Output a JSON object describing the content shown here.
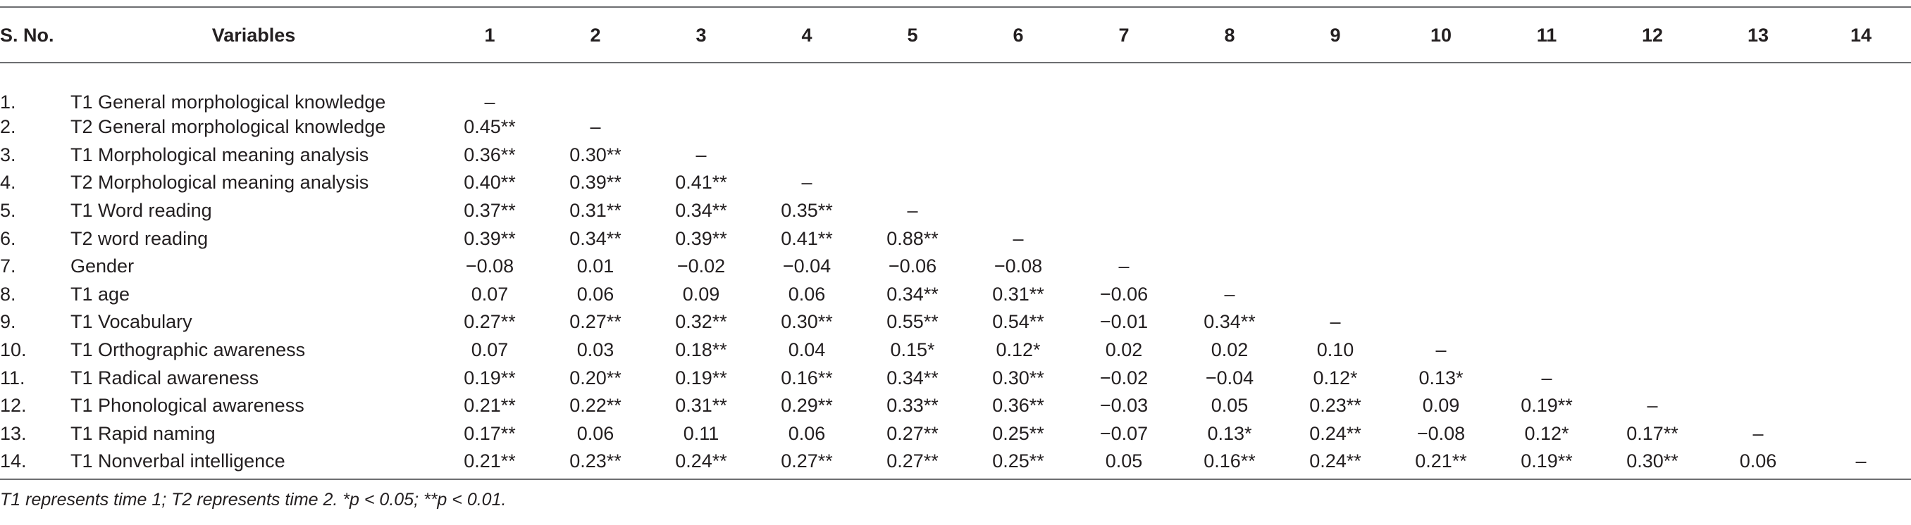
{
  "table": {
    "headers": [
      "S. No.",
      "Variables",
      "1",
      "2",
      "3",
      "4",
      "5",
      "6",
      "7",
      "8",
      "9",
      "10",
      "11",
      "12",
      "13",
      "14"
    ],
    "rows": [
      {
        "sno": "1.",
        "variable": "T1 General morphological knowledge",
        "values": [
          "–",
          "",
          "",
          "",
          "",
          "",
          "",
          "",
          "",
          "",
          "",
          "",
          "",
          ""
        ]
      },
      {
        "sno": "2.",
        "variable": "T2 General morphological knowledge",
        "values": [
          "0.45**",
          "–",
          "",
          "",
          "",
          "",
          "",
          "",
          "",
          "",
          "",
          "",
          "",
          ""
        ]
      },
      {
        "sno": "3.",
        "variable": "T1 Morphological meaning analysis",
        "values": [
          "0.36**",
          "0.30**",
          "–",
          "",
          "",
          "",
          "",
          "",
          "",
          "",
          "",
          "",
          "",
          ""
        ]
      },
      {
        "sno": "4.",
        "variable": "T2 Morphological meaning analysis",
        "values": [
          "0.40**",
          "0.39**",
          "0.41**",
          "–",
          "",
          "",
          "",
          "",
          "",
          "",
          "",
          "",
          "",
          ""
        ]
      },
      {
        "sno": "5.",
        "variable": "T1 Word reading",
        "values": [
          "0.37**",
          "0.31**",
          "0.34**",
          "0.35**",
          "–",
          "",
          "",
          "",
          "",
          "",
          "",
          "",
          "",
          ""
        ]
      },
      {
        "sno": "6.",
        "variable": "T2 word reading",
        "values": [
          "0.39**",
          "0.34**",
          "0.39**",
          "0.41**",
          "0.88**",
          "–",
          "",
          "",
          "",
          "",
          "",
          "",
          "",
          ""
        ]
      },
      {
        "sno": "7.",
        "variable": "Gender",
        "values": [
          "−0.08",
          "0.01",
          "−0.02",
          "−0.04",
          "−0.06",
          "−0.08",
          "–",
          "",
          "",
          "",
          "",
          "",
          "",
          ""
        ]
      },
      {
        "sno": "8.",
        "variable": "T1 age",
        "values": [
          "0.07",
          "0.06",
          "0.09",
          "0.06",
          "0.34**",
          "0.31**",
          "−0.06",
          "–",
          "",
          "",
          "",
          "",
          "",
          ""
        ]
      },
      {
        "sno": "9.",
        "variable": "T1 Vocabulary",
        "values": [
          "0.27**",
          "0.27**",
          "0.32**",
          "0.30**",
          "0.55**",
          "0.54**",
          "−0.01",
          "0.34**",
          "–",
          "",
          "",
          "",
          "",
          ""
        ]
      },
      {
        "sno": "10.",
        "variable": "T1 Orthographic awareness",
        "values": [
          "0.07",
          "0.03",
          "0.18**",
          "0.04",
          "0.15*",
          "0.12*",
          "0.02",
          "0.02",
          "0.10",
          "–",
          "",
          "",
          "",
          ""
        ]
      },
      {
        "sno": "11.",
        "variable": "T1 Radical awareness",
        "values": [
          "0.19**",
          "0.20**",
          "0.19**",
          "0.16**",
          "0.34**",
          "0.30**",
          "−0.02",
          "−0.04",
          "0.12*",
          "0.13*",
          "–",
          "",
          "",
          ""
        ]
      },
      {
        "sno": "12.",
        "variable": "T1 Phonological awareness",
        "values": [
          "0.21**",
          "0.22**",
          "0.31**",
          "0.29**",
          "0.33**",
          "0.36**",
          "−0.03",
          "0.05",
          "0.23**",
          "0.09",
          "0.19**",
          "–",
          "",
          ""
        ]
      },
      {
        "sno": "13.",
        "variable": "T1 Rapid naming",
        "values": [
          "0.17**",
          "0.06",
          "0.11",
          "0.06",
          "0.27**",
          "0.25**",
          "−0.07",
          "0.13*",
          "0.24**",
          "−0.08",
          "0.12*",
          "0.17**",
          "–",
          ""
        ]
      },
      {
        "sno": "14.",
        "variable": "T1 Nonverbal intelligence",
        "values": [
          "0.21**",
          "0.23**",
          "0.24**",
          "0.27**",
          "0.27**",
          "0.25**",
          "0.05",
          "0.16**",
          "0.24**",
          "0.21**",
          "0.19**",
          "0.30**",
          "0.06",
          "–"
        ]
      }
    ]
  },
  "footnote": "T1 represents time 1; T2 represents time 2. *p < 0.05; **p < 0.01."
}
